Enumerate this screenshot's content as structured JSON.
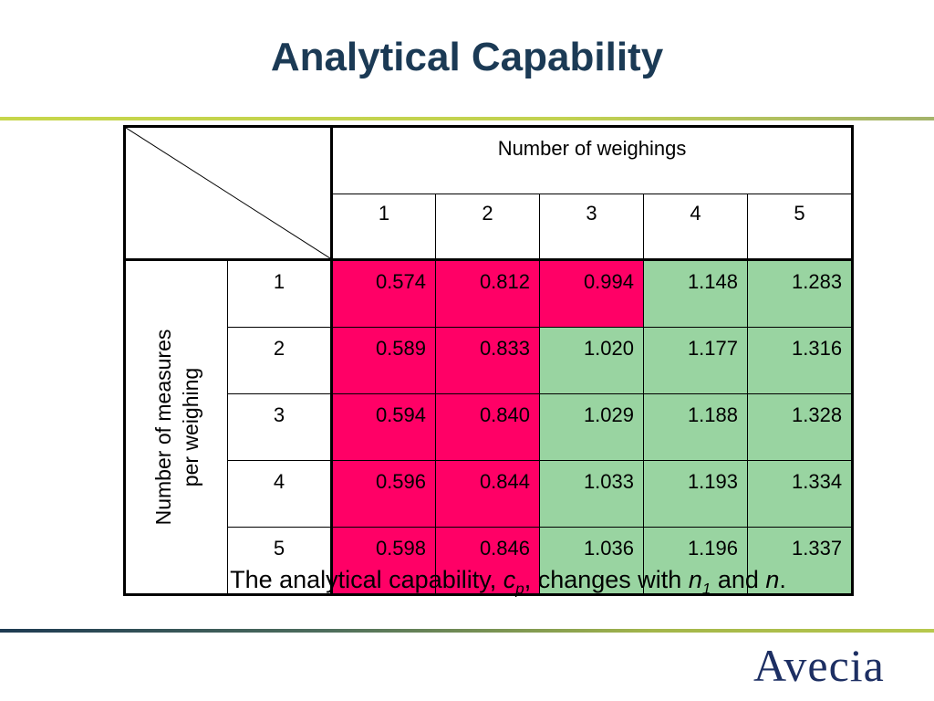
{
  "slide": {
    "title": "Analytical Capability"
  },
  "table": {
    "column_group_label": "Number of weighings",
    "row_group_label_line1": "Number of measures",
    "row_group_label_line2": "per weighing",
    "columns": [
      "1",
      "2",
      "3",
      "4",
      "5"
    ],
    "rows": [
      {
        "label": "1",
        "values": [
          "0.574",
          "0.812",
          "0.994",
          "1.148",
          "1.283"
        ],
        "highlight": [
          "red",
          "red",
          "red",
          "green",
          "green"
        ]
      },
      {
        "label": "2",
        "values": [
          "0.589",
          "0.833",
          "1.020",
          "1.177",
          "1.316"
        ],
        "highlight": [
          "red",
          "red",
          "green",
          "green",
          "green"
        ]
      },
      {
        "label": "3",
        "values": [
          "0.594",
          "0.840",
          "1.029",
          "1.188",
          "1.328"
        ],
        "highlight": [
          "red",
          "red",
          "green",
          "green",
          "green"
        ]
      },
      {
        "label": "4",
        "values": [
          "0.596",
          "0.844",
          "1.033",
          "1.193",
          "1.334"
        ],
        "highlight": [
          "red",
          "red",
          "green",
          "green",
          "green"
        ]
      },
      {
        "label": "5",
        "values": [
          "0.598",
          "0.846",
          "1.036",
          "1.196",
          "1.337"
        ],
        "highlight": [
          "red",
          "red",
          "green",
          "green",
          "green"
        ]
      }
    ],
    "colors": {
      "red": "#ff0066",
      "green": "#99d4a1"
    }
  },
  "caption": {
    "prefix": "The analytical capability, ",
    "cp_base": "c",
    "cp_sub": "p",
    "middle": ", changes with ",
    "n1_base": "n",
    "n1_sub": "1",
    "conj": " and ",
    "n": "n",
    "end": "."
  },
  "logo": {
    "text": "Avecia"
  }
}
